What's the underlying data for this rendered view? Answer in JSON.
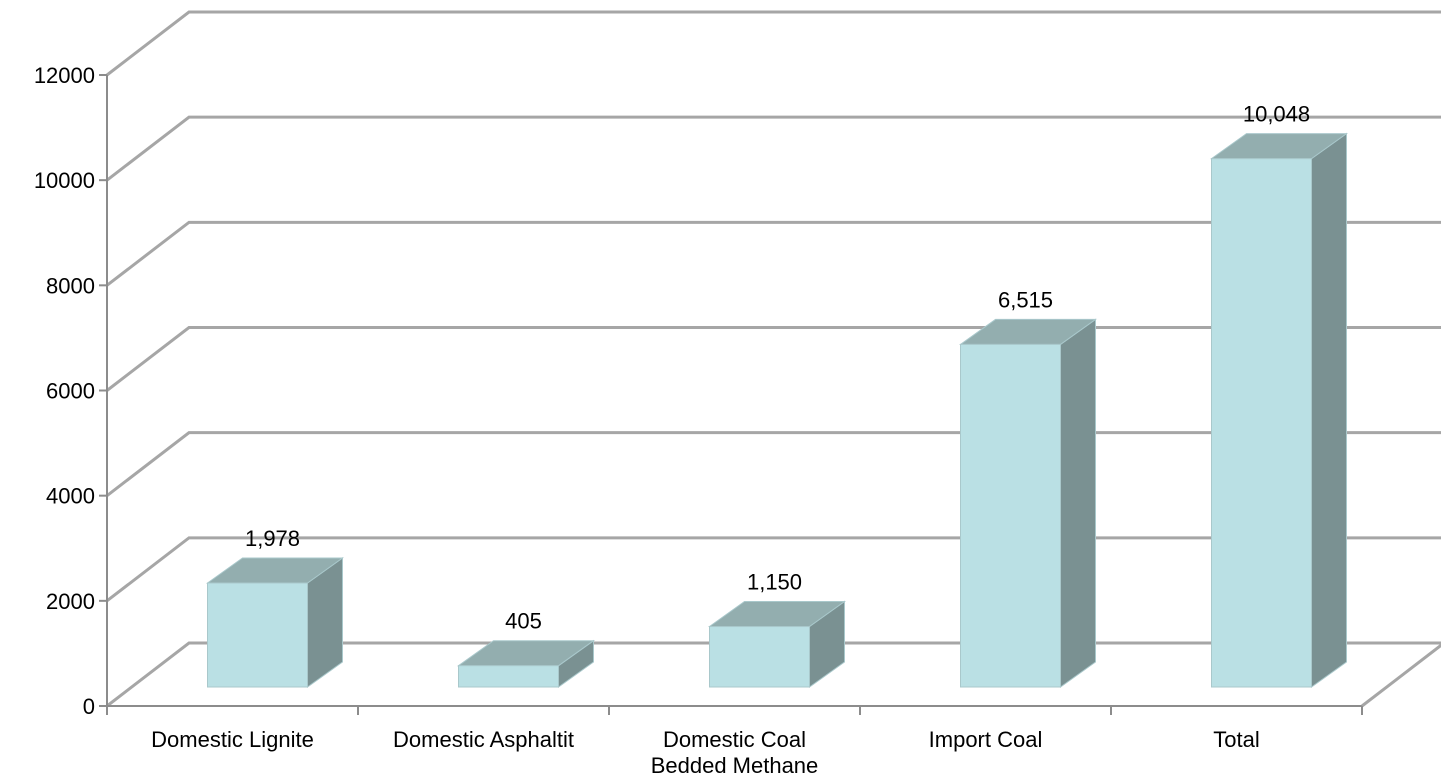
{
  "chart_data": {
    "type": "bar",
    "style": "3d-column",
    "categories": [
      "Domestic Lignite",
      "Domestic Asphaltit",
      "Domestic Coal Bedded Methane",
      "Import Coal",
      "Total"
    ],
    "category_label_lines": [
      [
        "Domestic Lignite"
      ],
      [
        "Domestic Asphaltit"
      ],
      [
        "Domestic Coal",
        "Bedded Methane"
      ],
      [
        "Import Coal"
      ],
      [
        "Total"
      ]
    ],
    "values": [
      1978,
      405,
      1150,
      6515,
      10048
    ],
    "data_labels": [
      "1,978",
      "405",
      "1,150",
      "6,515",
      "10,048"
    ],
    "title": "",
    "xlabel": "",
    "ylabel": "",
    "ylim": [
      0,
      12000
    ],
    "yticks": [
      0,
      2000,
      4000,
      6000,
      8000,
      10000,
      12000
    ],
    "ytick_labels": [
      "0",
      "2000",
      "4000",
      "6000",
      "8000",
      "10000",
      "12000"
    ],
    "grid": true,
    "legend": "none",
    "colors": {
      "bar_front": "#BAE0E4",
      "bar_top": "#93AEAF",
      "bar_side": "#7A9192",
      "bar_edge": "#A9C8CB",
      "grid_line": "#A6A6A6",
      "axis_line": "#8C8C8C"
    }
  }
}
